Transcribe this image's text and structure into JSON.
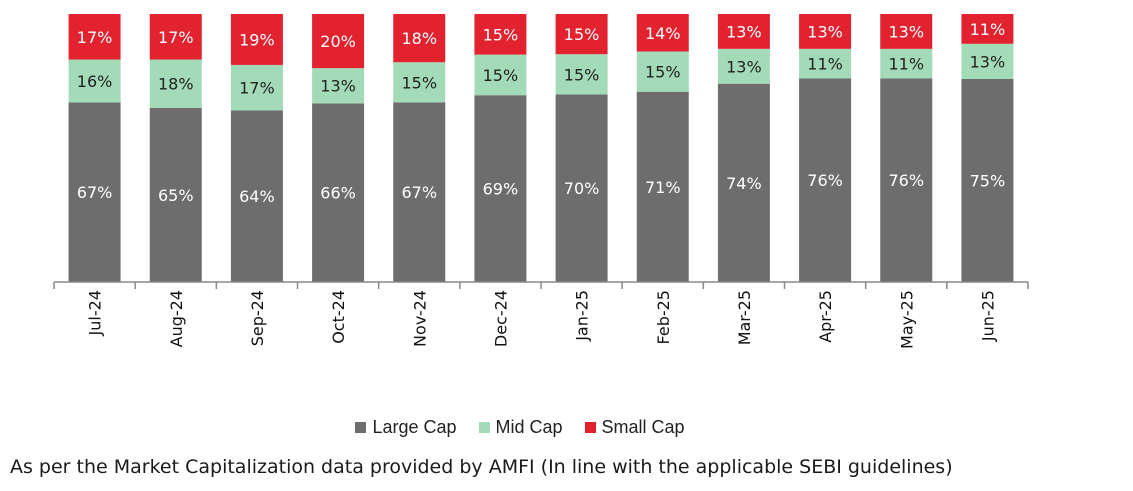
{
  "chart_data": {
    "type": "bar",
    "stacked": true,
    "normalized": true,
    "categories": [
      "Jul-24",
      "Aug-24",
      "Sep-24",
      "Oct-24",
      "Nov-24",
      "Dec-24",
      "Jan-25",
      "Feb-25",
      "Mar-25",
      "Apr-25",
      "May-25",
      "Jun-25"
    ],
    "series": [
      {
        "name": "Large Cap",
        "color": "#6d6d6d",
        "label_color": "#ffffff",
        "values": [
          67,
          65,
          64,
          66,
          67,
          69,
          70,
          71,
          74,
          76,
          76,
          75
        ]
      },
      {
        "name": "Mid Cap",
        "color": "#a3dbb8",
        "label_color": "#222222",
        "values": [
          16,
          18,
          17,
          13,
          15,
          15,
          15,
          15,
          13,
          11,
          11,
          13
        ]
      },
      {
        "name": "Small Cap",
        "color": "#e3222f",
        "label_color": "#ffffff",
        "values": [
          17,
          17,
          19,
          20,
          18,
          15,
          15,
          14,
          13,
          13,
          13,
          11
        ]
      }
    ],
    "data_label_suffix": "%",
    "legend_position": "bottom",
    "grid": false
  },
  "footnote": "As per the Market Capitalization data provided by AMFI (In line with the applicable SEBI guidelines)"
}
